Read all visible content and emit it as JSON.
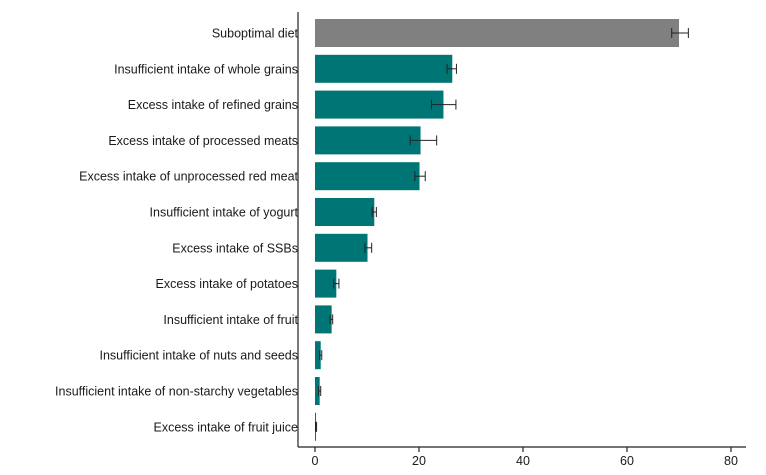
{
  "chart_data": {
    "type": "bar",
    "orientation": "horizontal",
    "title": "",
    "xlabel": "",
    "ylabel": "",
    "xlim": [
      0,
      80
    ],
    "x_ticks": [
      0,
      20,
      40,
      60,
      80
    ],
    "grid": false,
    "categories": [
      "Suboptimal diet",
      "Insufficient intake of whole grains",
      "Excess intake of refined grains",
      "Excess intake of processed meats",
      "Excess intake of unprocessed red meat",
      "Insufficient intake of yogurt",
      "Excess intake of SSBs",
      "Excess intake of potatoes",
      "Insufficient intake of fruit",
      "Insufficient intake of nuts and seeds",
      "Insufficient intake of non-starchy vegetables",
      "Excess intake of fruit juice"
    ],
    "values": [
      70.0,
      26.4,
      24.7,
      20.3,
      20.1,
      11.4,
      10.1,
      4.1,
      3.2,
      1.1,
      0.9,
      0.2
    ],
    "error_low": [
      68.6,
      25.4,
      22.4,
      18.3,
      19.2,
      11.0,
      9.6,
      3.6,
      2.9,
      0.9,
      0.7,
      0.1
    ],
    "error_high": [
      71.8,
      27.2,
      27.1,
      23.4,
      21.2,
      11.8,
      10.9,
      4.6,
      3.4,
      1.3,
      1.1,
      0.3
    ],
    "bar_colors": [
      "#808080",
      "#007575",
      "#007575",
      "#007575",
      "#007575",
      "#007575",
      "#007575",
      "#007575",
      "#007575",
      "#007575",
      "#007575",
      "#007575"
    ]
  }
}
